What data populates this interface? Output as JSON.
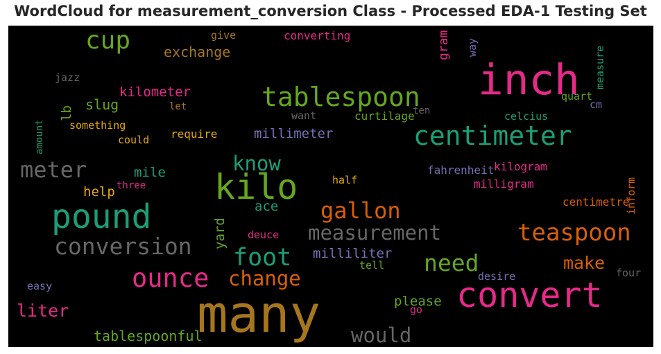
{
  "title": "WordCloud for measurement_conversion Class - Processed EDA-1 Testing Set",
  "colors": {
    "background": "#000000",
    "pink": "#e7298a",
    "teal": "#1b9e77",
    "lime": "#66a61e",
    "orange": "#d95f02",
    "gold": "#a6761d",
    "purple": "#7570b3",
    "yellow": "#e6ab02",
    "gray": "#666666"
  },
  "words": [
    {
      "text": "many",
      "color": "#a6761d"
    },
    {
      "text": "inch",
      "color": "#e7298a"
    },
    {
      "text": "convert",
      "color": "#e7298a"
    },
    {
      "text": "kilo",
      "color": "#66a61e"
    },
    {
      "text": "pound",
      "color": "#1b9e77"
    },
    {
      "text": "tablespoon",
      "color": "#66a61e"
    },
    {
      "text": "centimeter",
      "color": "#1b9e77"
    },
    {
      "text": "conversion",
      "color": "#666666"
    },
    {
      "text": "ounce",
      "color": "#e7298a"
    },
    {
      "text": "measurement",
      "color": "#666666"
    },
    {
      "text": "teaspoon",
      "color": "#d95f02"
    },
    {
      "text": "gallon",
      "color": "#d95f02"
    },
    {
      "text": "meter",
      "color": "#666666"
    },
    {
      "text": "foot",
      "color": "#1b9e77"
    },
    {
      "text": "need",
      "color": "#66a61e"
    },
    {
      "text": "change",
      "color": "#d95f02"
    },
    {
      "text": "cup",
      "color": "#66a61e"
    },
    {
      "text": "would",
      "color": "#666666"
    },
    {
      "text": "know",
      "color": "#1b9e77"
    },
    {
      "text": "make",
      "color": "#d95f02"
    },
    {
      "text": "liter",
      "color": "#e7298a"
    },
    {
      "text": "exchange",
      "color": "#a6761d"
    },
    {
      "text": "millimeter",
      "color": "#7570b3"
    },
    {
      "text": "milliliter",
      "color": "#7570b3"
    },
    {
      "text": "tablespoonful",
      "color": "#66a61e"
    },
    {
      "text": "kilometer",
      "color": "#e7298a"
    },
    {
      "text": "slug",
      "color": "#66a61e"
    },
    {
      "text": "please",
      "color": "#66a61e"
    },
    {
      "text": "mile",
      "color": "#1b9e77"
    },
    {
      "text": "help",
      "color": "#e6ab02"
    },
    {
      "text": "ace",
      "color": "#1b9e77"
    },
    {
      "text": "yard",
      "color": "#66a61e"
    },
    {
      "text": "lb",
      "color": "#66a61e"
    },
    {
      "text": "gram",
      "color": "#e7298a"
    },
    {
      "text": "require",
      "color": "#e6ab02"
    },
    {
      "text": "fahrenheit",
      "color": "#7570b3"
    },
    {
      "text": "kilogram",
      "color": "#e7298a"
    },
    {
      "text": "milligram",
      "color": "#e7298a"
    },
    {
      "text": "centimetre",
      "color": "#d95f02"
    },
    {
      "text": "converting",
      "color": "#e7298a"
    },
    {
      "text": "curtilage",
      "color": "#66a61e"
    },
    {
      "text": "celcius",
      "color": "#1b9e77"
    },
    {
      "text": "quart",
      "color": "#66a61e"
    },
    {
      "text": "measure",
      "color": "#1b9e77"
    },
    {
      "text": "something",
      "color": "#e6ab02"
    },
    {
      "text": "could",
      "color": "#e6ab02"
    },
    {
      "text": "desire",
      "color": "#7570b3"
    },
    {
      "text": "four",
      "color": "#666666"
    },
    {
      "text": "deuce",
      "color": "#e7298a"
    },
    {
      "text": "half",
      "color": "#e6ab02"
    },
    {
      "text": "three",
      "color": "#e7298a"
    },
    {
      "text": "tell",
      "color": "#66a61e"
    },
    {
      "text": "go",
      "color": "#e7298a"
    },
    {
      "text": "easy",
      "color": "#7570b3"
    },
    {
      "text": "amount",
      "color": "#1b9e77"
    },
    {
      "text": "jazz",
      "color": "#666666"
    },
    {
      "text": "give",
      "color": "#a6761d"
    },
    {
      "text": "let",
      "color": "#a6761d"
    },
    {
      "text": "want",
      "color": "#666666"
    },
    {
      "text": "ten",
      "color": "#666666"
    },
    {
      "text": "cm",
      "color": "#7570b3"
    },
    {
      "text": "way",
      "color": "#7570b3"
    },
    {
      "text": "inform",
      "color": "#d95f02"
    }
  ]
}
